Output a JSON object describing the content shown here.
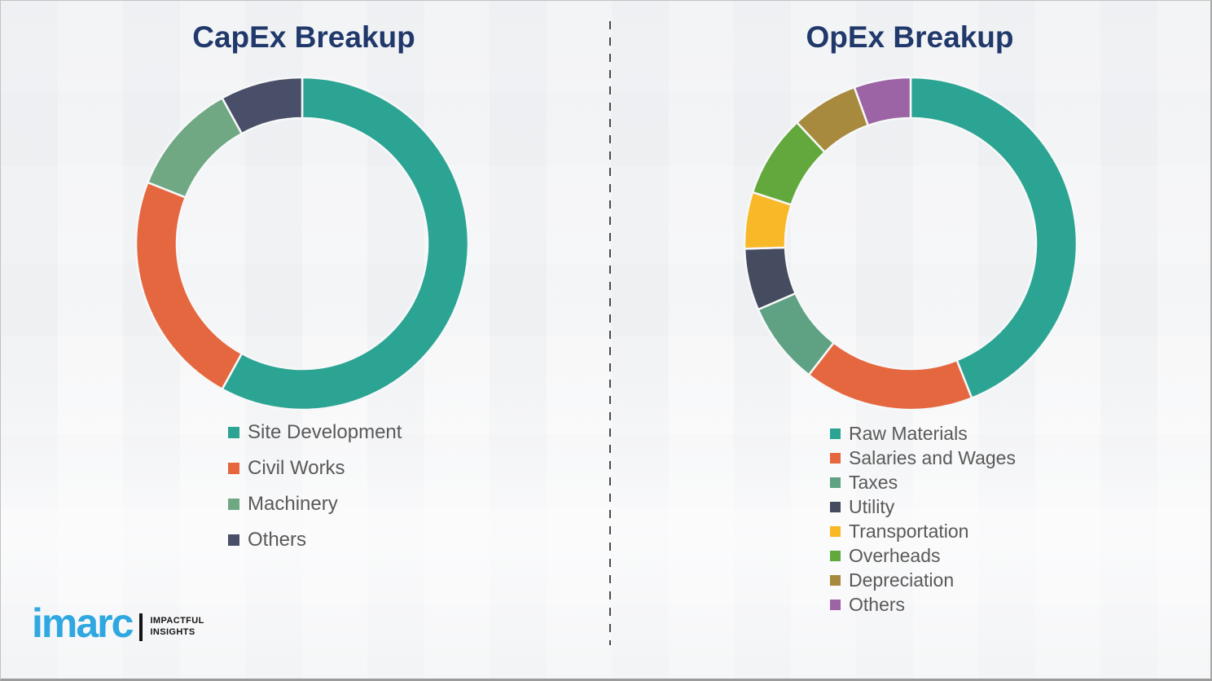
{
  "chart_data": [
    {
      "type": "pie",
      "subtype": "donut",
      "title": "CapEx Breakup",
      "labels": [
        "Site Development",
        "Civil Works",
        "Machinery",
        "Others"
      ],
      "values": [
        58,
        23,
        11,
        8
      ],
      "colors": [
        "#2ca493",
        "#e5673f",
        "#6fa883",
        "#4a4f69"
      ],
      "values_note": "percentages estimated from arc angles; no numeric labels shown in image",
      "start_angle": "top",
      "direction": "clockwise",
      "inner_radius_ratio": 0.755,
      "separator_color": "#f7f8f9",
      "legend_position": "below-left"
    },
    {
      "type": "pie",
      "subtype": "donut",
      "title": "OpEx Breakup",
      "labels": [
        "Raw Materials",
        "Salaries and Wages",
        "Taxes",
        "Utility",
        "Transportation",
        "Overheads",
        "Depreciation",
        "Others"
      ],
      "values": [
        44,
        16.5,
        8,
        6,
        5.5,
        8,
        6.5,
        5.5
      ],
      "colors": [
        "#2ca493",
        "#e5673f",
        "#5fa183",
        "#464c60",
        "#f8b828",
        "#62a83c",
        "#a78a3d",
        "#9c63a5"
      ],
      "values_note": "percentages estimated from arc angles; no numeric labels shown in image",
      "start_angle": "top",
      "direction": "clockwise",
      "inner_radius_ratio": 0.755,
      "separator_color": "#f7f8f9",
      "legend_position": "below-left"
    }
  ],
  "logo": {
    "wordmark": "imarc",
    "tagline_line1": "IMPACTFUL",
    "tagline_line2": "INSIGHTS"
  },
  "colors": {
    "title_text": "#21386b",
    "legend_text": "#595959",
    "background": "#f4f5f6",
    "divider_dash": "#4a4a4a",
    "brand_blue": "#2fa8e1",
    "logo_black": "#141414",
    "frame_border": "#c2c2c2"
  }
}
